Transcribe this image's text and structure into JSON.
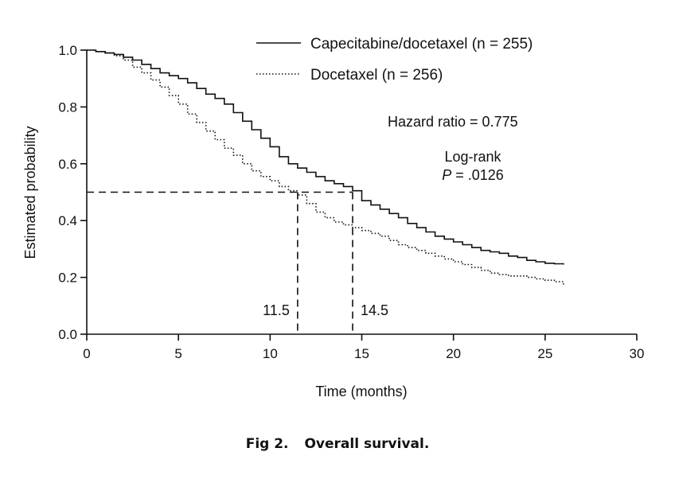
{
  "caption": {
    "number": "Fig 2.",
    "text": "Overall survival."
  },
  "chart_data": {
    "type": "line",
    "title": "",
    "xlabel": "Time (months)",
    "ylabel": "Estimated probability",
    "xlim": [
      0,
      30
    ],
    "ylim": [
      0.0,
      1.0
    ],
    "xticks": [
      0,
      5,
      10,
      15,
      20,
      25,
      30
    ],
    "yticks": [
      "0.0",
      "0.2",
      "0.4",
      "0.6",
      "0.8",
      "1.0"
    ],
    "grid": false,
    "legend_position": "top-right",
    "series": [
      {
        "name": "Capecitabine/docetaxel (n = 255)",
        "style": "solid",
        "color": "#111111",
        "x": [
          0,
          0.5,
          1,
          1.5,
          2,
          2.5,
          3,
          3.5,
          4,
          4.5,
          5,
          5.5,
          6,
          6.5,
          7,
          7.5,
          8,
          8.5,
          9,
          9.5,
          10,
          10.5,
          11,
          11.5,
          12,
          12.5,
          13,
          13.5,
          14,
          14.5,
          15,
          15.5,
          16,
          16.5,
          17,
          17.5,
          18,
          18.5,
          19,
          19.5,
          20,
          20.5,
          21,
          21.5,
          22,
          22.5,
          23,
          23.5,
          24,
          24.5,
          25,
          25.5,
          26
        ],
        "y": [
          1.0,
          0.995,
          0.99,
          0.985,
          0.975,
          0.965,
          0.95,
          0.935,
          0.92,
          0.91,
          0.9,
          0.885,
          0.865,
          0.845,
          0.83,
          0.81,
          0.78,
          0.75,
          0.72,
          0.69,
          0.66,
          0.625,
          0.6,
          0.585,
          0.57,
          0.555,
          0.54,
          0.53,
          0.52,
          0.505,
          0.47,
          0.455,
          0.44,
          0.425,
          0.41,
          0.39,
          0.375,
          0.36,
          0.345,
          0.335,
          0.325,
          0.315,
          0.305,
          0.295,
          0.29,
          0.285,
          0.275,
          0.27,
          0.26,
          0.255,
          0.25,
          0.248,
          0.245
        ]
      },
      {
        "name": "Docetaxel (n = 256)",
        "style": "dotted",
        "color": "#111111",
        "x": [
          0,
          0.5,
          1,
          1.5,
          2,
          2.5,
          3,
          3.5,
          4,
          4.5,
          5,
          5.5,
          6,
          6.5,
          7,
          7.5,
          8,
          8.5,
          9,
          9.5,
          10,
          10.5,
          11,
          11.5,
          12,
          12.5,
          13,
          13.5,
          14,
          14.5,
          15,
          15.5,
          16,
          16.5,
          17,
          17.5,
          18,
          18.5,
          19,
          19.5,
          20,
          20.5,
          21,
          21.5,
          22,
          22.5,
          23,
          23.5,
          24,
          24.5,
          25,
          25.5,
          26
        ],
        "y": [
          1.0,
          0.995,
          0.99,
          0.98,
          0.965,
          0.94,
          0.92,
          0.895,
          0.87,
          0.84,
          0.81,
          0.775,
          0.745,
          0.715,
          0.685,
          0.655,
          0.63,
          0.6,
          0.575,
          0.555,
          0.54,
          0.52,
          0.505,
          0.49,
          0.46,
          0.43,
          0.41,
          0.395,
          0.385,
          0.375,
          0.365,
          0.355,
          0.345,
          0.33,
          0.315,
          0.305,
          0.295,
          0.285,
          0.275,
          0.265,
          0.255,
          0.245,
          0.235,
          0.225,
          0.215,
          0.21,
          0.205,
          0.205,
          0.2,
          0.195,
          0.19,
          0.185,
          0.175
        ]
      }
    ],
    "reference_lines": {
      "median_y": 0.5,
      "medians": [
        {
          "x": 11.5,
          "label": "11.5"
        },
        {
          "x": 14.5,
          "label": "14.5"
        }
      ]
    },
    "annotations": {
      "hazard": "Hazard ratio = 0.775",
      "logrank": "Log-rank",
      "p_label": "P",
      "p_value": " = .0126"
    }
  }
}
